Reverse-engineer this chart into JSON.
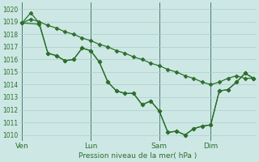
{
  "bg_color": "#cde8e4",
  "grid_color": "#aacccc",
  "line_color": "#2d6e2d",
  "marker_color": "#2d6e2d",
  "xlabel_text": "Pression niveau de la mer( hPa )",
  "ylim": [
    1009.5,
    1020.5
  ],
  "yticks": [
    1010,
    1011,
    1012,
    1013,
    1014,
    1015,
    1016,
    1017,
    1018,
    1019,
    1020
  ],
  "xtick_labels": [
    "Ven",
    "Lun",
    "Sam",
    "Dim"
  ],
  "xtick_positions": [
    0,
    8,
    16,
    22
  ],
  "vline_positions": [
    0,
    8,
    16,
    22
  ],
  "xlim": [
    -0.3,
    27.3
  ],
  "series1_x": [
    0,
    1,
    2,
    3,
    4,
    5,
    6,
    7,
    8,
    9,
    10,
    11,
    12,
    13,
    14,
    15,
    16,
    17,
    18,
    19,
    20,
    21,
    22,
    23,
    24,
    25,
    26,
    27
  ],
  "series1_y": [
    1018.9,
    1019.2,
    1019.0,
    1018.7,
    1018.5,
    1018.2,
    1018.0,
    1017.7,
    1017.5,
    1017.2,
    1017.0,
    1016.7,
    1016.5,
    1016.2,
    1016.0,
    1015.7,
    1015.5,
    1015.2,
    1015.0,
    1014.7,
    1014.5,
    1014.2,
    1014.0,
    1014.2,
    1014.5,
    1014.7,
    1014.5,
    1014.5
  ],
  "series2_x": [
    0,
    1,
    2,
    3,
    4,
    5,
    6,
    7,
    8,
    9,
    10,
    11,
    12,
    13,
    14,
    15,
    16,
    17,
    18,
    19,
    20,
    21,
    22,
    23,
    24,
    25,
    26,
    27
  ],
  "series2_y": [
    1018.9,
    1019.7,
    1018.9,
    1016.5,
    1016.3,
    1015.9,
    1016.0,
    1016.9,
    1016.7,
    1015.8,
    1014.2,
    1013.5,
    1013.3,
    1013.3,
    1012.4,
    1012.7,
    1011.9,
    1010.2,
    1010.3,
    1010.0,
    1010.5,
    1010.7,
    1010.8,
    1013.5,
    1013.6,
    1014.2,
    1014.9,
    1014.5
  ],
  "series3_x": [
    0,
    2,
    3,
    4,
    5,
    6,
    7,
    8,
    9,
    10,
    11,
    12,
    13,
    14,
    15,
    16,
    17,
    18,
    19,
    20,
    21,
    22,
    23,
    24,
    25,
    26,
    27
  ],
  "series3_y": [
    1018.9,
    1018.8,
    1016.5,
    1016.3,
    1015.9,
    1016.0,
    1016.9,
    1016.7,
    1015.8,
    1014.2,
    1013.5,
    1013.3,
    1013.3,
    1012.4,
    1012.7,
    1011.9,
    1010.2,
    1010.3,
    1010.0,
    1010.5,
    1010.7,
    1010.8,
    1013.5,
    1013.6,
    1014.2,
    1014.9,
    1014.5
  ]
}
